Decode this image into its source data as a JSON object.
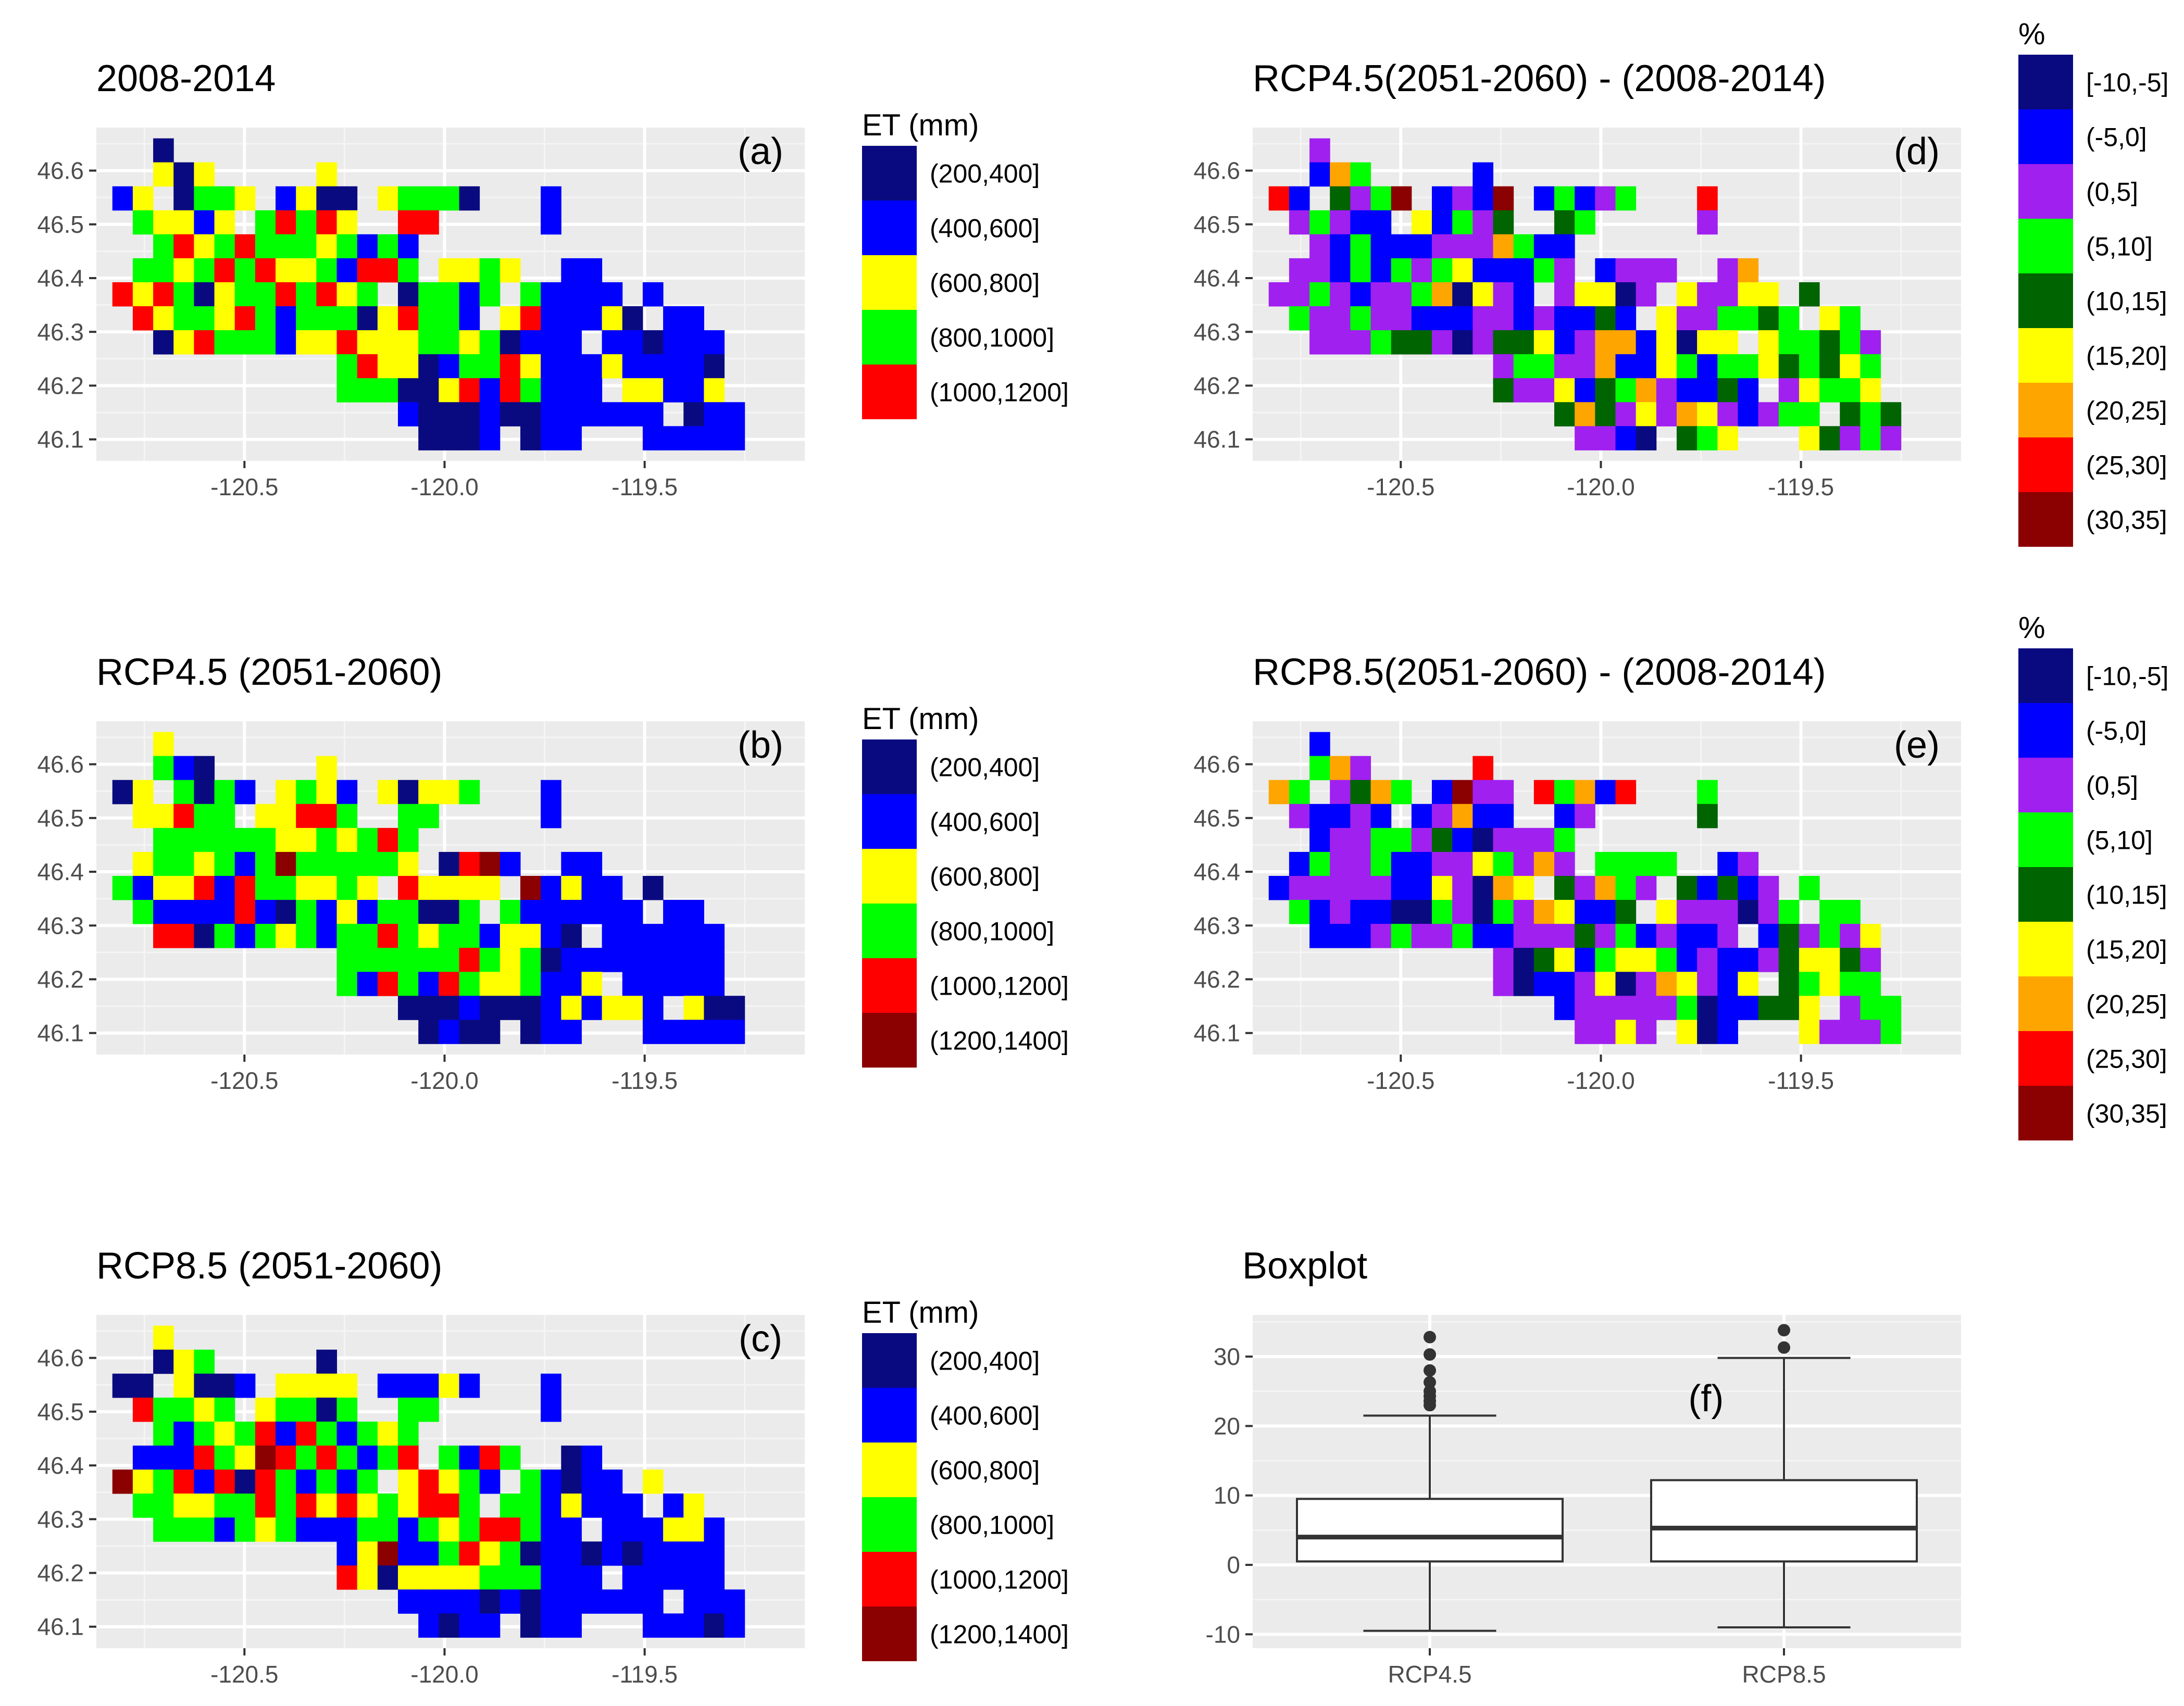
{
  "figure": {
    "region": {
      "lon_range": [
        -120.87,
        -119.1
      ],
      "lat_range": [
        46.06,
        46.68
      ]
    }
  },
  "chart_data": [
    {
      "type": "heatmap",
      "id": "a",
      "title": "2008-2014",
      "panel_label": "(a)",
      "xlabel": "",
      "ylabel": "",
      "xticks": [
        "-120.5",
        "-120.0",
        "-119.5"
      ],
      "yticks": [
        "46.1",
        "46.2",
        "46.3",
        "46.4",
        "46.5",
        "46.6"
      ],
      "xlim": [
        -120.87,
        -119.1
      ],
      "ylim": [
        46.06,
        46.68
      ],
      "legend": {
        "title": "ET (mm)",
        "position": "right",
        "labels": [
          "(200,400]",
          "(400,600]",
          "(600,800]",
          "(800,1000]",
          "(1000,1200]"
        ],
        "colors": [
          "#0a0a80",
          "#0000ff",
          "#ffff00",
          "#00ff00",
          "#ff0000"
        ]
      }
    },
    {
      "type": "heatmap",
      "id": "b",
      "title": "RCP4.5 (2051-2060)",
      "panel_label": "(b)",
      "xlabel": "",
      "ylabel": "",
      "xticks": [
        "-120.5",
        "-120.0",
        "-119.5"
      ],
      "yticks": [
        "46.1",
        "46.2",
        "46.3",
        "46.4",
        "46.5",
        "46.6"
      ],
      "xlim": [
        -120.87,
        -119.1
      ],
      "ylim": [
        46.06,
        46.68
      ],
      "legend": {
        "title": "ET (mm)",
        "position": "right",
        "labels": [
          "(200,400]",
          "(400,600]",
          "(600,800]",
          "(800,1000]",
          "(1000,1200]",
          "(1200,1400]"
        ],
        "colors": [
          "#0a0a80",
          "#0000ff",
          "#ffff00",
          "#00ff00",
          "#ff0000",
          "#8b0000"
        ]
      }
    },
    {
      "type": "heatmap",
      "id": "c",
      "title": "RCP8.5 (2051-2060)",
      "panel_label": "(c)",
      "xlabel": "",
      "ylabel": "",
      "xticks": [
        "-120.5",
        "-120.0",
        "-119.5"
      ],
      "yticks": [
        "46.1",
        "46.2",
        "46.3",
        "46.4",
        "46.5",
        "46.6"
      ],
      "xlim": [
        -120.87,
        -119.1
      ],
      "ylim": [
        46.06,
        46.68
      ],
      "legend": {
        "title": "ET (mm)",
        "position": "right",
        "labels": [
          "(200,400]",
          "(400,600]",
          "(600,800]",
          "(800,1000]",
          "(1000,1200]",
          "(1200,1400]"
        ],
        "colors": [
          "#0a0a80",
          "#0000ff",
          "#ffff00",
          "#00ff00",
          "#ff0000",
          "#8b0000"
        ]
      }
    },
    {
      "type": "heatmap",
      "id": "d",
      "title": "RCP4.5(2051-2060) - (2008-2014)",
      "panel_label": "(d)",
      "xlabel": "",
      "ylabel": "",
      "xticks": [
        "-120.5",
        "-120.0",
        "-119.5"
      ],
      "yticks": [
        "46.1",
        "46.2",
        "46.3",
        "46.4",
        "46.5",
        "46.6"
      ],
      "xlim": [
        -120.87,
        -119.1
      ],
      "ylim": [
        46.06,
        46.68
      ],
      "legend": {
        "title": "%",
        "position": "right",
        "labels": [
          "[-10,-5]",
          "(-5,0]",
          "(0,5]",
          "(5,10]",
          "(10,15]",
          "(15,20]",
          "(20,25]",
          "(25,30]",
          "(30,35]"
        ],
        "colors": [
          "#0a0a80",
          "#0000ff",
          "#a020f0",
          "#00ff00",
          "#006400",
          "#ffff00",
          "#ffa500",
          "#ff0000",
          "#8b0000"
        ]
      }
    },
    {
      "type": "heatmap",
      "id": "e",
      "title": "RCP8.5(2051-2060) - (2008-2014)",
      "panel_label": "(e)",
      "xlabel": "",
      "ylabel": "",
      "xticks": [
        "-120.5",
        "-120.0",
        "-119.5"
      ],
      "yticks": [
        "46.1",
        "46.2",
        "46.3",
        "46.4",
        "46.5",
        "46.6"
      ],
      "xlim": [
        -120.87,
        -119.1
      ],
      "ylim": [
        46.06,
        46.68
      ],
      "legend": {
        "title": "%",
        "position": "right",
        "labels": [
          "[-10,-5]",
          "(-5,0]",
          "(0,5]",
          "(5,10]",
          "(10,15]",
          "(15,20]",
          "(20,25]",
          "(25,30]",
          "(30,35]"
        ],
        "colors": [
          "#0a0a80",
          "#0000ff",
          "#a020f0",
          "#00ff00",
          "#006400",
          "#ffff00",
          "#ffa500",
          "#ff0000",
          "#8b0000"
        ]
      }
    },
    {
      "type": "box",
      "id": "f",
      "title": "Boxplot",
      "panel_label": "(f)",
      "xlabel": "",
      "ylabel": "",
      "categories": [
        "RCP4.5",
        "RCP8.5"
      ],
      "yticks": [
        "-10",
        "0",
        "10",
        "20",
        "30"
      ],
      "ylim": [
        -12,
        36
      ],
      "boxes": [
        {
          "name": "RCP4.5",
          "whisker_low": -9.5,
          "q1": 0.5,
          "median": 4,
          "q3": 9.5,
          "whisker_high": 21.5,
          "outliers": [
            23,
            23.6,
            24.3,
            25,
            26.3,
            28,
            30.3,
            32.8
          ]
        },
        {
          "name": "RCP8.5",
          "whisker_low": -9,
          "q1": 0.5,
          "median": 5.3,
          "q3": 12.2,
          "whisker_high": 29.8,
          "outliers": [
            31.3,
            33.8
          ]
        }
      ]
    }
  ]
}
